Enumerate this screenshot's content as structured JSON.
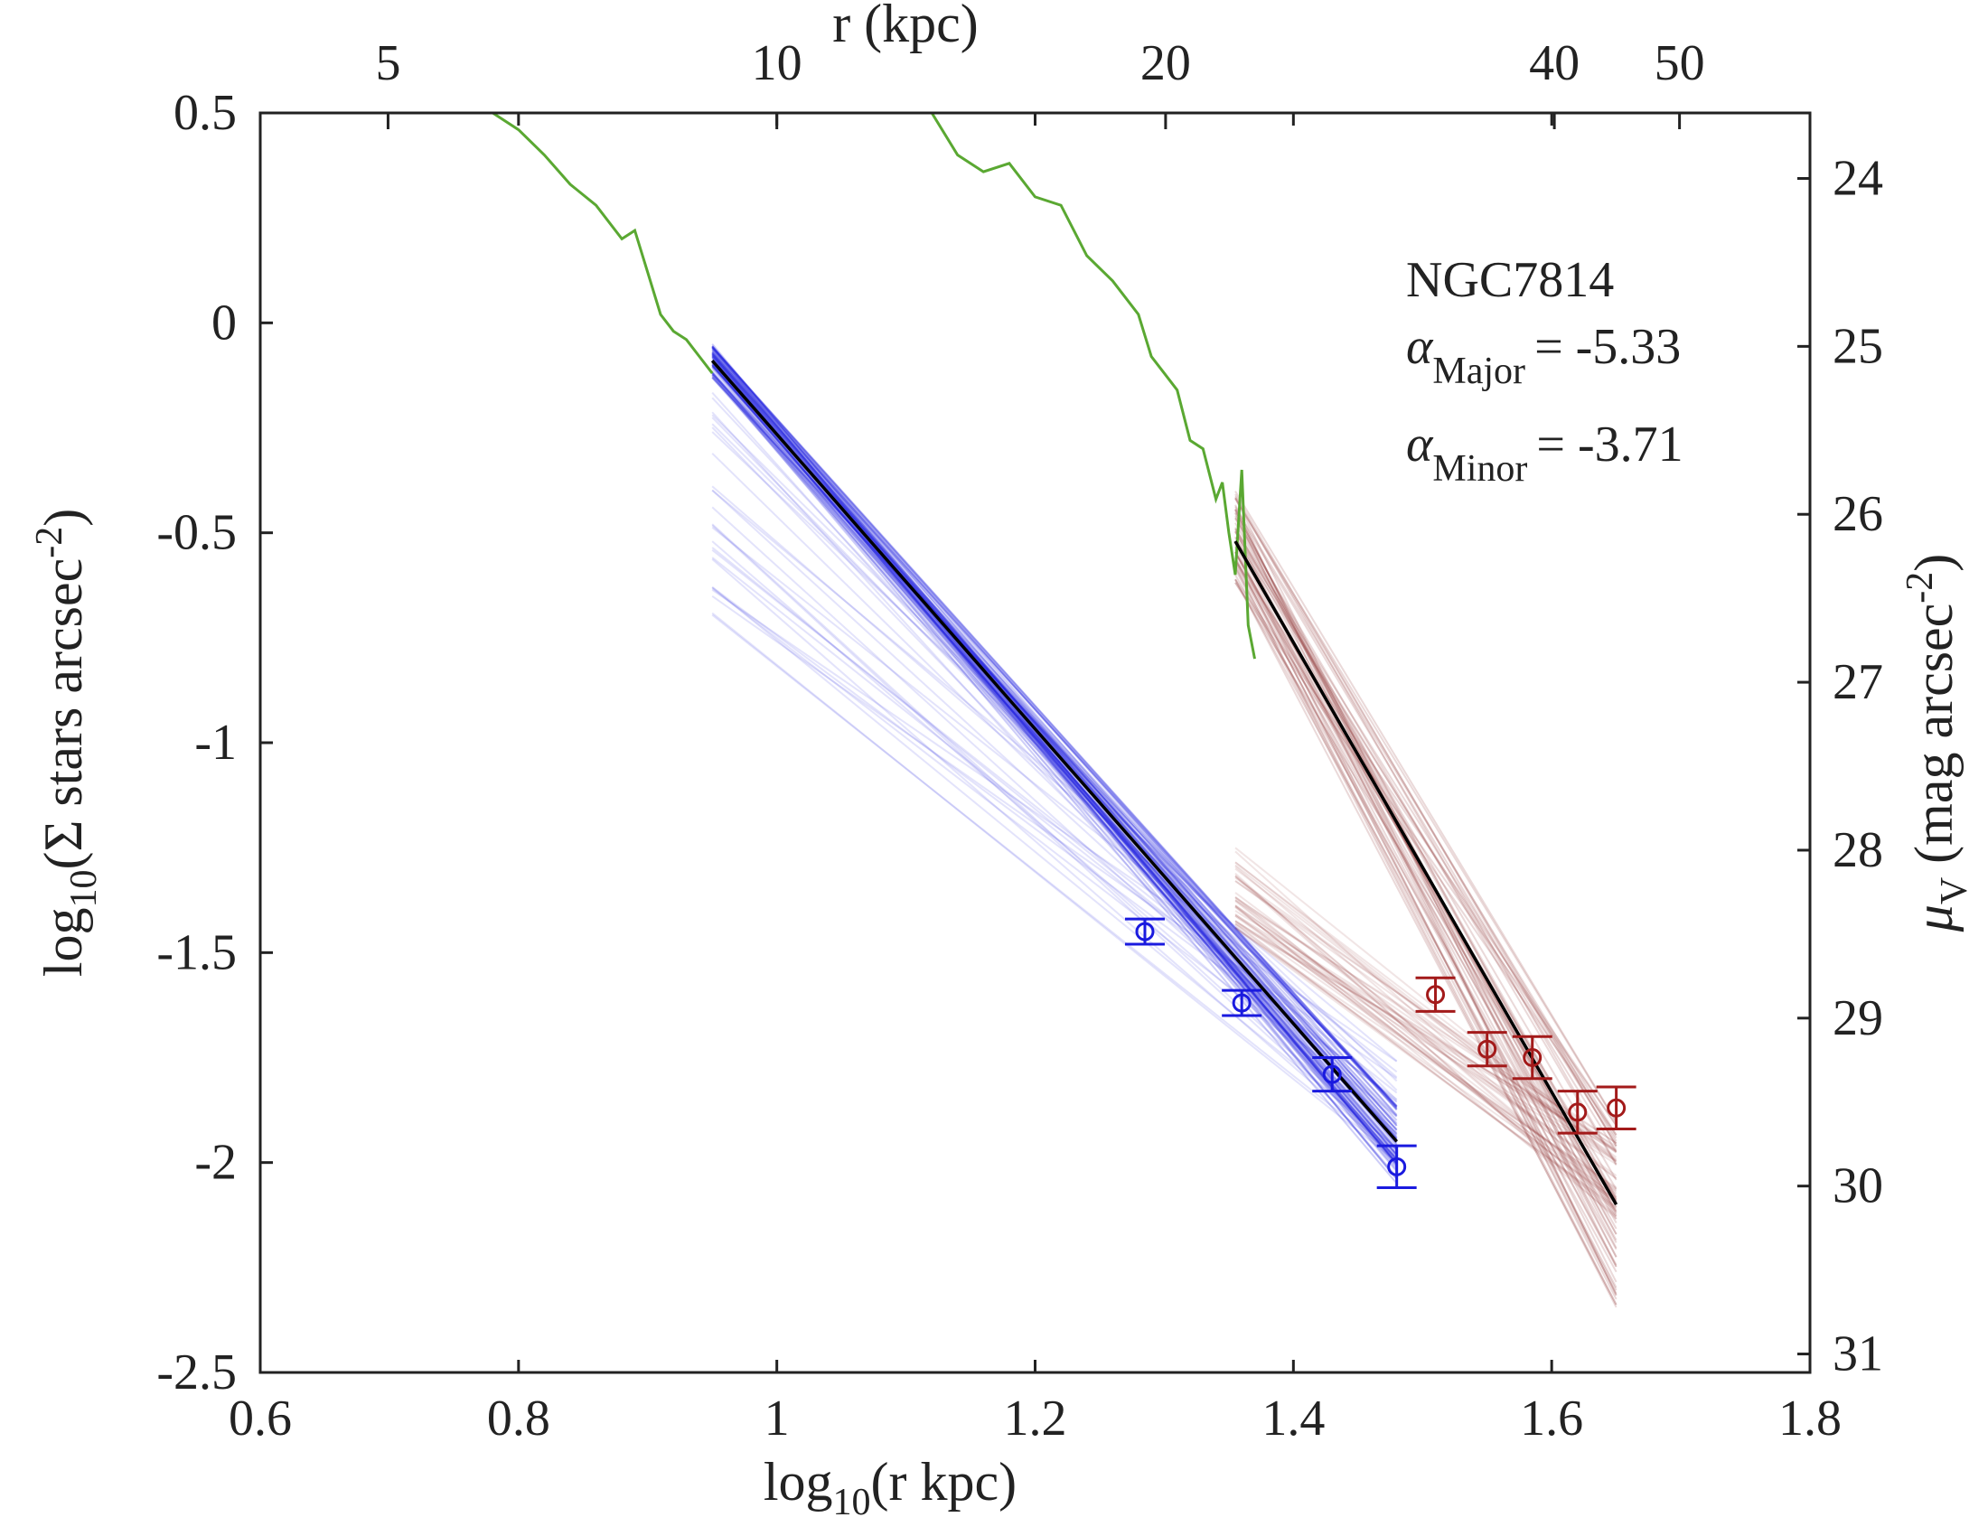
{
  "chart_data": {
    "type": "line",
    "title": "",
    "xlabel": "log10(r kpc)",
    "ylabel": "log10(Σ stars arcsec-2)",
    "top_xlabel": "r (kpc)",
    "right_ylabel": "μV (mag arcsec-2)",
    "xlim": [
      0.6,
      1.8
    ],
    "ylim": [
      -2.5,
      0.5
    ],
    "right_ylim": [
      31.11,
      23.61
    ],
    "grid": false,
    "legend": "none",
    "x_ticks": [
      "0.6",
      "0.8",
      "1",
      "1.2",
      "1.4",
      "1.6",
      "1.8"
    ],
    "y_ticks": [
      "0.5",
      "0",
      "-0.5",
      "-1",
      "-1.5",
      "-2",
      "-2.5"
    ],
    "top_ticks": [
      "5",
      "10",
      "20",
      "40",
      "50"
    ],
    "right_ticks": [
      "24",
      "25",
      "26",
      "27",
      "28",
      "29",
      "30",
      "31"
    ],
    "annotations": {
      "galaxy": "NGC7814",
      "alpha_major_sym": "α",
      "alpha_major_sub": "Major",
      "alpha_major_val": "= -5.33",
      "alpha_minor_sym": "α",
      "alpha_minor_sub": "Minor",
      "alpha_minor_val": "= -3.71"
    },
    "colors": {
      "major": "#1a1adf",
      "minor": "#a31a1a",
      "minor_fan": "#8b2a2a",
      "green": "#5aa832",
      "fit": "#000000",
      "axis": "#222222"
    },
    "series": [
      {
        "role": "green-profile-left",
        "x": [
          0.78,
          0.8,
          0.82,
          0.84,
          0.86,
          0.88,
          0.89,
          0.9,
          0.91,
          0.92,
          0.93,
          0.94,
          0.95
        ],
        "y": [
          0.5,
          0.46,
          0.4,
          0.33,
          0.28,
          0.2,
          0.22,
          0.12,
          0.02,
          -0.02,
          -0.04,
          -0.08,
          -0.12
        ]
      },
      {
        "role": "green-profile-right",
        "x": [
          1.12,
          1.14,
          1.16,
          1.18,
          1.2,
          1.22,
          1.24,
          1.26,
          1.28,
          1.29,
          1.3,
          1.31,
          1.32,
          1.33,
          1.34,
          1.345,
          1.35,
          1.355,
          1.36,
          1.365,
          1.37
        ],
        "y": [
          0.5,
          0.4,
          0.36,
          0.38,
          0.3,
          0.28,
          0.16,
          0.1,
          0.02,
          -0.08,
          -0.12,
          -0.16,
          -0.28,
          -0.3,
          -0.42,
          -0.38,
          -0.5,
          -0.6,
          -0.35,
          -0.72,
          -0.8
        ]
      },
      {
        "role": "major-fit",
        "x": [
          0.95,
          1.48
        ],
        "y": [
          -0.09,
          -1.95
        ]
      },
      {
        "role": "minor-fit",
        "x": [
          1.355,
          1.65
        ],
        "y": [
          -0.52,
          -2.1
        ]
      },
      {
        "role": "major-points",
        "x": [
          1.285,
          1.36,
          1.43,
          1.48
        ],
        "y": [
          -1.45,
          -1.62,
          -1.79,
          -2.01
        ],
        "err": [
          0.03,
          0.03,
          0.04,
          0.05
        ]
      },
      {
        "role": "minor-points",
        "x": [
          1.51,
          1.55,
          1.585,
          1.62,
          1.65
        ],
        "y": [
          -1.6,
          -1.73,
          -1.75,
          -1.88,
          -1.87
        ],
        "err": [
          0.04,
          0.04,
          0.05,
          0.05,
          0.05
        ]
      }
    ]
  }
}
